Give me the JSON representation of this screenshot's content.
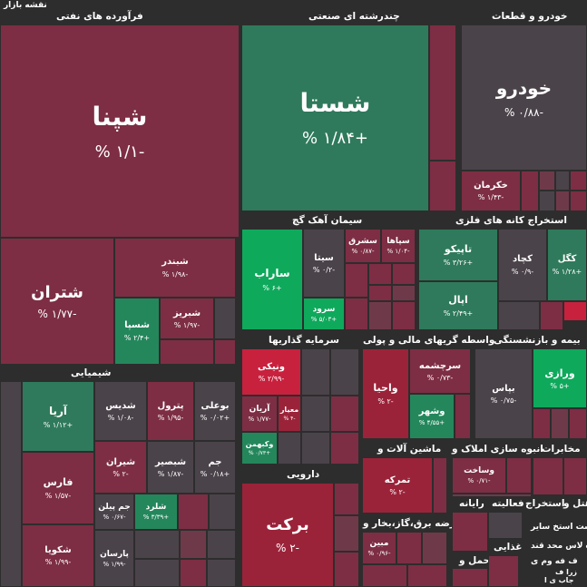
{
  "page_title": "نقشه بازار",
  "sectors": {
    "oil": "فرآورده های نفتی",
    "multi": "چندرشته ای صنعتی",
    "auto": "خودرو و قطعات",
    "cement": "سیمان آهک گچ",
    "mining": "استخراج کانه های فلزی",
    "chemical": "شیمیایی",
    "invest": "سرمایه گذاریها",
    "finance": "واسطه گریهای مالی و پولی",
    "insurance": "بیمه و بازنشستگی",
    "pharma": "دارویی",
    "machinery": "ماشین آلات و",
    "realestate": "انبوه سازی املاک و",
    "telecom": "مخابرات",
    "utility": "عرضه برق،گاز،بخار و",
    "computer": "رایانه",
    "extract": "استخراج",
    "activities": "فعالیته",
    "hotel": "هتل و",
    "transport": "حمل و",
    "food": "غذایی"
  },
  "tiles": {
    "shapna": {
      "name": "شپنا",
      "value": "% ۱/۱-"
    },
    "shasta": {
      "name": "شستا",
      "value": "% ۱/۸۴+"
    },
    "khodro": {
      "name": "خودرو",
      "value": "% ۰/۸۸-"
    },
    "khakarman": {
      "name": "خکرمان",
      "value": "% ۱/۴۳-"
    },
    "shatran": {
      "name": "شتران",
      "value": "% ۱/۷۷-"
    },
    "shebandar": {
      "name": "شبندر",
      "value": "% ۱/۹۸-"
    },
    "shesepa": {
      "name": "شسپا",
      "value": "% ۲/۴+"
    },
    "shebriz": {
      "name": "شبریز",
      "value": "% ۱/۹۷-"
    },
    "sarab": {
      "name": "ساراب",
      "value": "% ۶+"
    },
    "sita": {
      "name": "سیتا",
      "value": "% ۰/۲-"
    },
    "sorud": {
      "name": "سرود",
      "value": "% ۵/۰۳+"
    },
    "sesharq": {
      "name": "سشرق",
      "value": "% ۰/۸۷-"
    },
    "sepaha": {
      "name": "سپاها",
      "value": "% ۱/۰۴-"
    },
    "tapiko": {
      "name": "تاپیکو",
      "value": "% ۳/۲۶+"
    },
    "kechad": {
      "name": "کچاد",
      "value": "% ۰/۹-"
    },
    "kegol": {
      "name": "کگل",
      "value": "% ۱/۲۸+"
    },
    "apal": {
      "name": "اپال",
      "value": "% ۲/۴۹+"
    },
    "arya": {
      "name": "آریا",
      "value": "% ۱/۱۲+"
    },
    "shedis": {
      "name": "شدیس",
      "value": "% ۱/۰۸-"
    },
    "petrol": {
      "name": "پترول",
      "value": "% ۱/۹۵-"
    },
    "buali": {
      "name": "بوعلی",
      "value": "% ۰/۰۲+"
    },
    "fars": {
      "name": "فارس",
      "value": "% ۱/۵۷-"
    },
    "shiran": {
      "name": "شیران",
      "value": "% ۲-"
    },
    "shebsir": {
      "name": "شبصیر",
      "value": "% ۱/۸۷-"
    },
    "jam": {
      "name": "جم",
      "value": "% ۰/۱۸+"
    },
    "jampilen": {
      "name": "جم پیلن",
      "value": "% ۰/۶۷-"
    },
    "shelard": {
      "name": "شلرد",
      "value": "% ۳/۳۹+"
    },
    "shekvia": {
      "name": "شکویا",
      "value": "% ۱/۹۹-"
    },
    "parsan": {
      "name": "پارسان",
      "value": "% ۱/۹۹-"
    },
    "vanik": {
      "name": "ونیکی",
      "value": "% ۲/۹۹-"
    },
    "aryan": {
      "name": "آریان",
      "value": "% ۱/۷۷-"
    },
    "meyar": {
      "name": "معیار",
      "value": "% ۴-"
    },
    "vakbahman": {
      "name": "وکبهمن",
      "value": "% ۰/۷۳+"
    },
    "vahiya": {
      "name": "واحیا",
      "value": "% ۲-"
    },
    "sarchashmeh": {
      "name": "سرچشمه",
      "value": "% ۰/۷۳-"
    },
    "vashahr": {
      "name": "وشهر",
      "value": "% ۴/۵۵+"
    },
    "bapas": {
      "name": "بپاس",
      "value": "% ۰/۷۵-"
    },
    "varazi": {
      "name": "ورازی",
      "value": "% ۵+"
    },
    "barekat": {
      "name": "برکت",
      "value": "% ۲-"
    },
    "tamrakeh": {
      "name": "تمرکه",
      "value": "% ۲-"
    },
    "vasakht": {
      "name": "وساخت",
      "value": "% ۰/۷۱-"
    },
    "mabin": {
      "name": "مبین",
      "value": "% ۰/۹۶-"
    }
  },
  "misc_labels": {
    "food_row1": "است استخ سایر",
    "food_row2": "ده لاس محد قند",
    "food_row3": "ف فه وم ی",
    "food_row4": "زرا ف",
    "food_row5": "جاب ی ا"
  },
  "colors": {
    "strong_green": "#0fa95c",
    "green": "#2f7a5c",
    "red": "#7d2e44",
    "strong_red": "#c8213e",
    "neutral": "#4b434a",
    "background": "#2d2d2d"
  }
}
